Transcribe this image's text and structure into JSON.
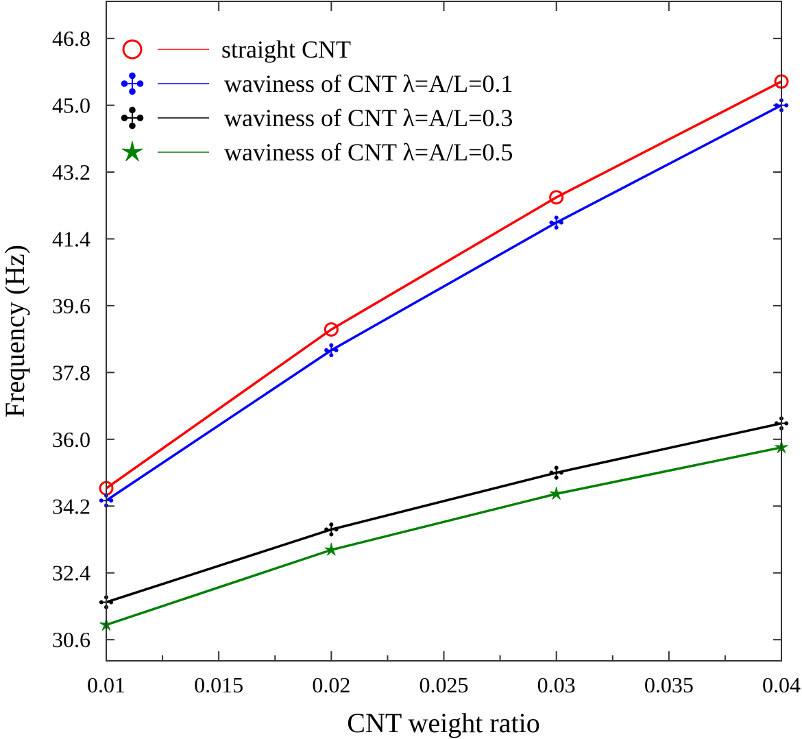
{
  "chart_data": {
    "type": "line",
    "title": "",
    "xlabel": "CNT weight ratio",
    "ylabel": "Frequency (Hz)",
    "x": [
      0.01,
      0.02,
      0.03,
      0.04
    ],
    "xlim": [
      0.01,
      0.04
    ],
    "ylim": [
      30.03,
      47.8
    ],
    "xticks": [
      "0.01",
      "0.015",
      "0.02",
      "0.025",
      "0.03",
      "0.035",
      "0.04"
    ],
    "xtick_values": [
      0.01,
      0.015,
      0.02,
      0.025,
      0.03,
      0.035,
      0.04
    ],
    "yticks": [
      "30.6",
      "32.4",
      "34.2",
      "36.0",
      "37.8",
      "39.6",
      "41.4",
      "43.2",
      "45.0",
      "46.8"
    ],
    "ytick_values": [
      30.6,
      32.4,
      34.2,
      36.0,
      37.8,
      39.6,
      41.4,
      43.2,
      45.0,
      46.8
    ],
    "grid": false,
    "legend_position": "top-left",
    "series": [
      {
        "name": "straight CNT",
        "color": "#ff0000",
        "marker": "circle",
        "values": [
          34.68,
          38.96,
          42.52,
          45.64
        ]
      },
      {
        "name": "waviness of CNT λ=A/L=0.1",
        "color": "#0000ff",
        "marker": "four-arrows",
        "values": [
          34.35,
          38.4,
          41.84,
          45.0
        ]
      },
      {
        "name": "waviness of CNT λ=A/L=0.3",
        "color": "#000000",
        "marker": "four-arrows",
        "values": [
          31.61,
          33.57,
          35.1,
          36.43
        ]
      },
      {
        "name": "waviness of CNT λ=A/L=0.5",
        "color": "#008000",
        "marker": "star",
        "values": [
          31.0,
          33.02,
          34.53,
          35.78
        ]
      }
    ]
  }
}
